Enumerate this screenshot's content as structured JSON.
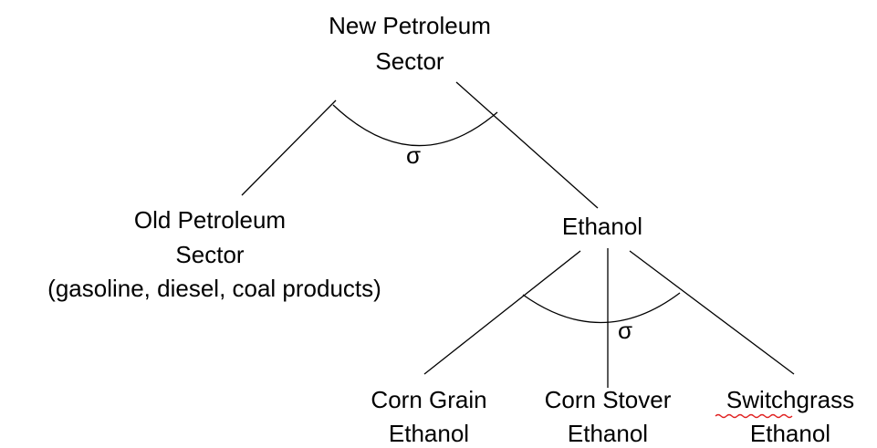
{
  "nodes": [
    {
      "lines": [
        "New Petroleum",
        "Sector"
      ]
    },
    {
      "lines": [
        "Old Petroleum",
        "Sector",
        "(gasoline, diesel, coal products)"
      ]
    },
    {
      "lines": [
        "Ethanol"
      ]
    },
    {
      "lines": [
        "Corn Grain",
        "Ethanol"
      ]
    },
    {
      "lines": [
        "Corn Stover",
        "Ethanol"
      ]
    },
    {
      "lines": [
        "Switchgrass",
        "Ethanol"
      ]
    }
  ],
  "elasticities": [
    "σ",
    "σ"
  ]
}
